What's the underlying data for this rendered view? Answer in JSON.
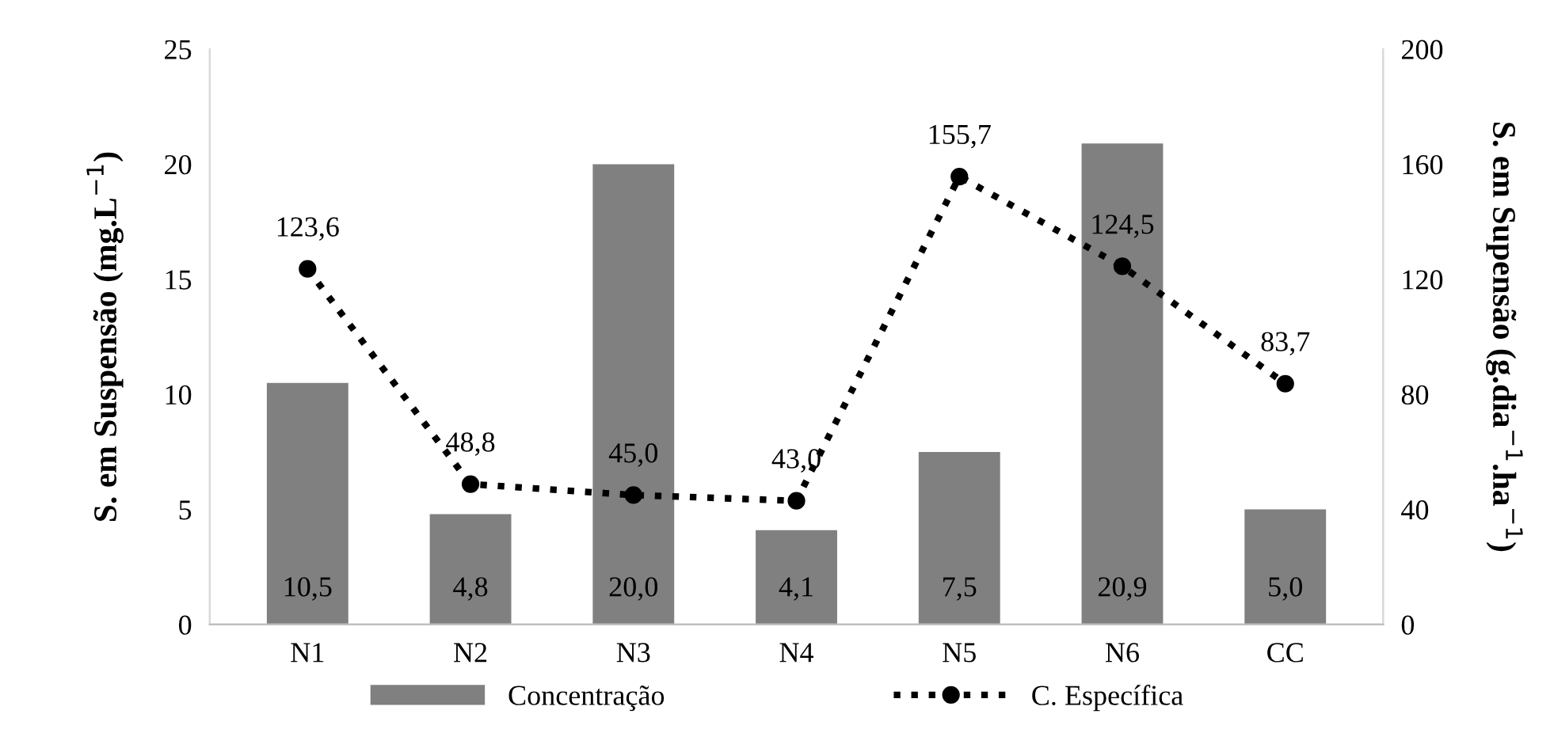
{
  "chart_data": {
    "type": "bar",
    "ylabel": "S. em Suspensão (mg.L$^{−1}$)",
    "y2label": "S. em Supensão (g.dia$^{−1}$.ha$^{−1}$)",
    "categories": [
      "N1",
      "N2",
      "N3",
      "N4",
      "N5",
      "N6",
      "CC"
    ],
    "series": [
      {
        "name": "Concentração",
        "color": "#808080",
        "values": [
          10.5,
          4.8,
          20.0,
          4.1,
          7.5,
          20.9,
          5.0
        ],
        "value_labels": [
          "10,5",
          "4,8",
          "20,0",
          "4,1",
          "7,5",
          "20,9",
          "5,0"
        ]
      },
      {
        "name": "C. Específica",
        "type": "line",
        "axis": "y2",
        "color": "#000000",
        "marker": "circle",
        "line_style": "dotted",
        "values": [
          123.6,
          48.8,
          45.0,
          43.0,
          155.7,
          124.5,
          83.7
        ],
        "value_labels": [
          "123,6",
          "48,8",
          "45,0",
          "43,0",
          "155,7",
          "124,5",
          "83,7"
        ]
      }
    ],
    "ylim": [
      0,
      25
    ],
    "yticks": [
      0,
      5,
      10,
      15,
      20,
      25
    ],
    "y2lim": [
      0,
      200
    ],
    "y2ticks": [
      0,
      40,
      80,
      120,
      160,
      200
    ],
    "grid": false,
    "legend": "bottom"
  }
}
